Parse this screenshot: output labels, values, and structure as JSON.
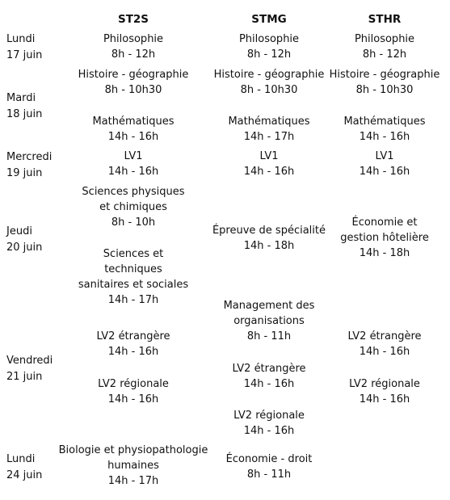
{
  "headers": [
    "ST2S",
    "STMG",
    "STHR"
  ],
  "days": [
    {
      "line1": "Lundi",
      "line2": "17 juin"
    },
    {
      "line1": "Mardi",
      "line2": "18 juin"
    },
    {
      "line1": "Mercredi",
      "line2": "19 juin"
    },
    {
      "line1": "Jeudi",
      "line2": "20 juin"
    },
    {
      "line1": "Vendredi",
      "line2": "21 juin"
    },
    {
      "line1": "Lundi",
      "line2": "24 juin"
    }
  ],
  "cells": {
    "mon17": [
      {
        "subject": "Philosophie",
        "time": "8h - 12h"
      },
      {
        "subject": "Philosophie",
        "time": "8h - 12h"
      },
      {
        "subject": "Philosophie",
        "time": "8h - 12h"
      }
    ],
    "tue18_a": [
      {
        "subject": "Histoire - géographie",
        "time": "8h - 10h30"
      },
      {
        "subject": "Histoire - géographie",
        "time": "8h - 10h30"
      },
      {
        "subject": "Histoire - géographie",
        "time": "8h - 10h30"
      }
    ],
    "tue18_b": [
      {
        "subject": "Mathématiques",
        "time": "14h - 16h"
      },
      {
        "subject": "Mathématiques",
        "time": "14h - 17h"
      },
      {
        "subject": "Mathématiques",
        "time": "14h - 16h"
      }
    ],
    "wed19": [
      {
        "subject": "LV1",
        "time": "14h - 16h"
      },
      {
        "subject": "LV1",
        "time": "14h - 16h"
      },
      {
        "subject": "LV1",
        "time": "14h - 16h"
      }
    ],
    "thu20": {
      "st2s_a": {
        "l1": "Sciences physiques",
        "l2": "et chimiques",
        "time": "8h - 10h"
      },
      "st2s_b": {
        "l1": "Sciences et techniques",
        "l2": "sanitaires et sociales",
        "time": "14h - 17h"
      },
      "stmg": {
        "subject": "Épreuve de spécialité",
        "time": "14h - 18h"
      },
      "sthr": {
        "l1": "Économie et",
        "l2": "gestion hôtelière",
        "time": "14h - 18h"
      }
    },
    "fri21": {
      "st2s_a": {
        "subject": "LV2 étrangère",
        "time": "14h - 16h"
      },
      "st2s_b": {
        "subject": "LV2 régionale",
        "time": "14h - 16h"
      },
      "stmg_a": {
        "l1": "Management des",
        "l2": "organisations",
        "time": "8h - 11h"
      },
      "stmg_b": {
        "subject": "LV2 étrangère",
        "time": "14h - 16h"
      },
      "stmg_c": {
        "subject": "LV2 régionale",
        "time": "14h - 16h"
      },
      "sthr_a": {
        "subject": "LV2 étrangère",
        "time": "14h - 16h"
      },
      "sthr_b": {
        "subject": "LV2 régionale",
        "time": "14h - 16h"
      }
    },
    "mon24": {
      "st2s": {
        "l1": "Biologie et physiopathologie",
        "l2": "humaines",
        "time": "14h - 17h"
      },
      "stmg": {
        "subject": "Économie - droit",
        "time": "8h - 11h"
      }
    }
  }
}
